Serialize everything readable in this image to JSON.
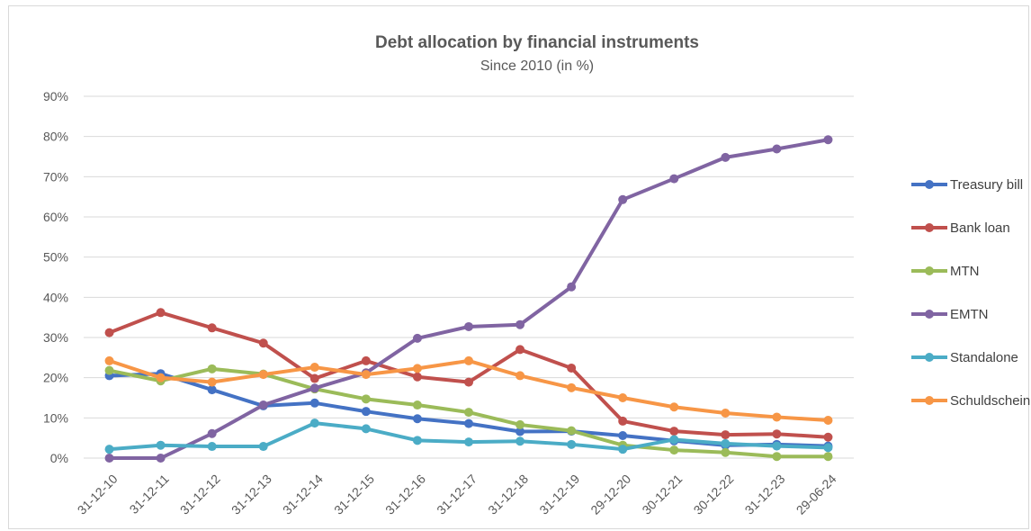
{
  "chart_data": {
    "type": "line",
    "title": "Debt allocation by financial instruments",
    "subtitle": "Since 2010  (in %)",
    "categories": [
      "31-12-10",
      "31-12-11",
      "31-12-12",
      "31-12-13",
      "31-12-14",
      "31-12-15",
      "31-12-16",
      "31-12-17",
      "31-12-18",
      "31-12-19",
      "29-12-20",
      "30-12-21",
      "30-12-22",
      "31-12-23",
      "29-06-24"
    ],
    "y_ticks": [
      "0%",
      "10%",
      "20%",
      "30%",
      "40%",
      "50%",
      "60%",
      "70%",
      "80%",
      "90%"
    ],
    "ylim": [
      0,
      90
    ],
    "grid": true,
    "legend_position": "right",
    "series": [
      {
        "name": "Treasury bill",
        "color": "#4472C4",
        "values": [
          20.5,
          21,
          17,
          13,
          13.7,
          11.6,
          9.8,
          8.6,
          6.6,
          6.7,
          5.6,
          4.3,
          3.2,
          3.4,
          3
        ]
      },
      {
        "name": "Bank loan",
        "color": "#C0504D",
        "values": [
          31.2,
          36.2,
          32.4,
          28.6,
          19.8,
          24.2,
          20.2,
          18.9,
          27,
          22.4,
          9.2,
          6.7,
          5.8,
          6,
          5.2
        ]
      },
      {
        "name": "MTN",
        "color": "#9BBB59",
        "values": [
          21.8,
          19.2,
          22.2,
          20.9,
          17.2,
          14.7,
          13.2,
          11.4,
          8.3,
          6.8,
          3.2,
          2,
          1.4,
          0.4,
          0.4
        ]
      },
      {
        "name": "EMTN",
        "color": "#8064A2",
        "values": [
          0,
          0,
          6.1,
          13.2,
          17.4,
          21.2,
          29.8,
          32.7,
          33.2,
          42.6,
          64.3,
          69.5,
          74.8,
          76.9,
          79.2
        ]
      },
      {
        "name": "Standalone",
        "color": "#4BACC6",
        "values": [
          2.2,
          3.2,
          2.9,
          2.9,
          8.7,
          7.3,
          4.4,
          4,
          4.2,
          3.4,
          2.2,
          4.6,
          3.6,
          3,
          2.6
        ]
      },
      {
        "name": "Schuldschein",
        "color": "#F79646",
        "values": [
          24.2,
          20,
          18.9,
          20.8,
          22.6,
          20.8,
          22.3,
          24.2,
          20.5,
          17.5,
          15,
          12.7,
          11.2,
          10.2,
          9.4
        ]
      }
    ]
  }
}
